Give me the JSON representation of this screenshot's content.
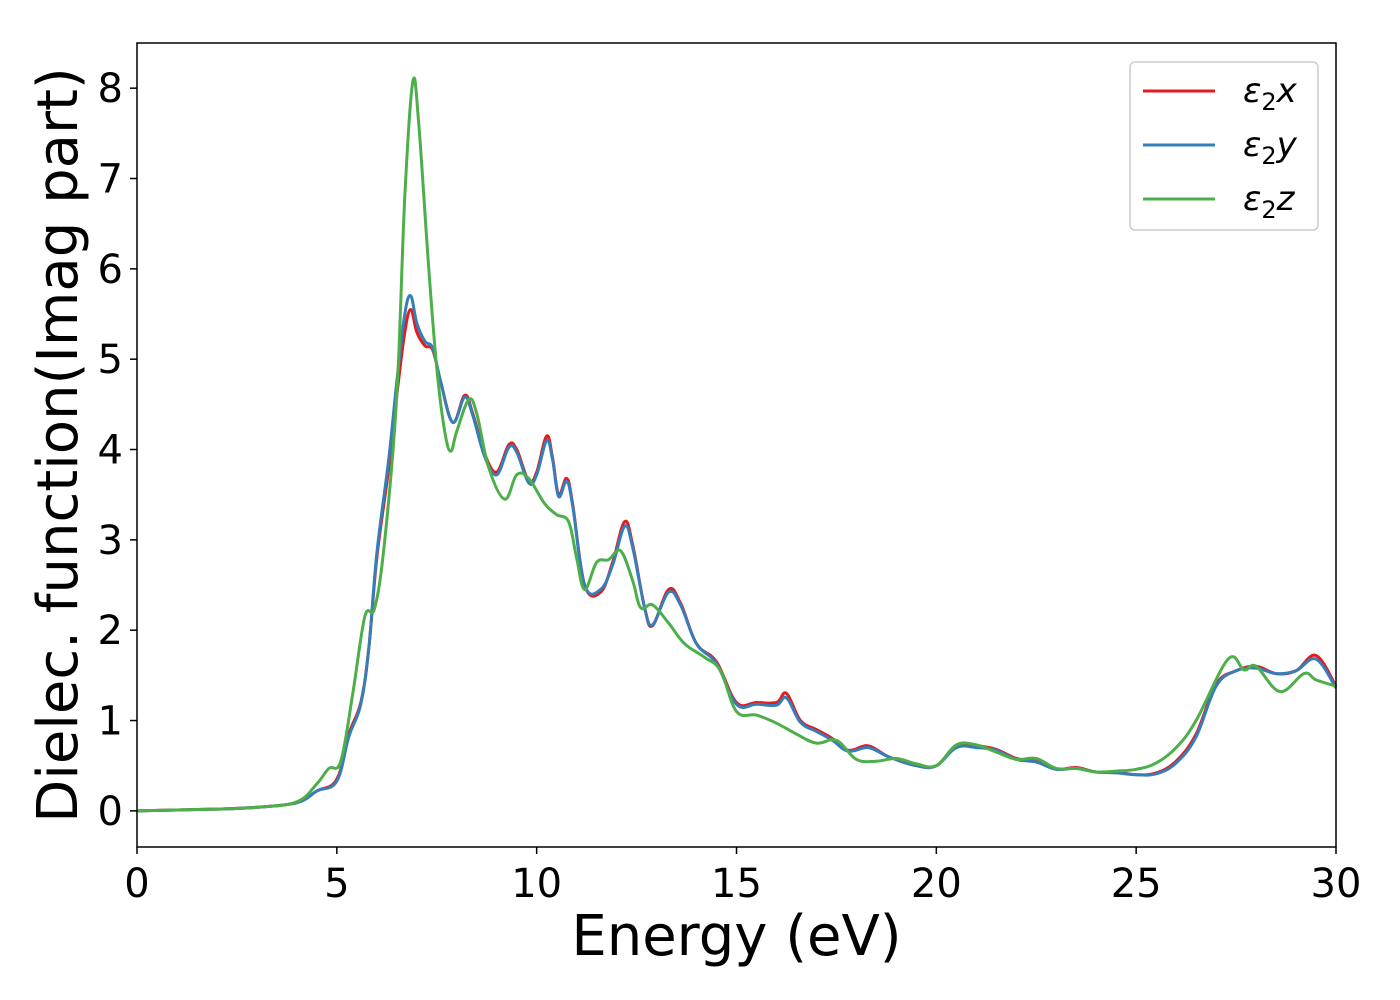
{
  "chart_data": {
    "type": "line",
    "xlabel": "Energy (eV)",
    "ylabel": "Dielec. function(Imag part)",
    "xlim": [
      0,
      30
    ],
    "ylim": [
      -0.4,
      8.5
    ],
    "xticks": [
      "0",
      "5",
      "10",
      "15",
      "20",
      "25",
      "30"
    ],
    "yticks": [
      "0",
      "1",
      "2",
      "3",
      "4",
      "5",
      "6",
      "7",
      "8"
    ],
    "grid": false,
    "legend_position": "top-right",
    "series": [
      {
        "name": "ε₂x",
        "legend_main": "ε",
        "legend_sub": "2",
        "legend_tail": "x",
        "color": "#e41a1c",
        "points": [
          [
            0,
            0.0
          ],
          [
            1,
            0.01
          ],
          [
            2,
            0.02
          ],
          [
            3,
            0.04
          ],
          [
            4,
            0.09
          ],
          [
            4.5,
            0.22
          ],
          [
            5,
            0.35
          ],
          [
            5.3,
            0.85
          ],
          [
            5.6,
            1.2
          ],
          [
            5.8,
            1.8
          ],
          [
            6,
            2.8
          ],
          [
            6.3,
            3.8
          ],
          [
            6.5,
            4.6
          ],
          [
            6.7,
            5.3
          ],
          [
            6.85,
            5.55
          ],
          [
            7,
            5.3
          ],
          [
            7.2,
            5.15
          ],
          [
            7.4,
            5.1
          ],
          [
            7.6,
            4.75
          ],
          [
            7.9,
            4.3
          ],
          [
            8.2,
            4.6
          ],
          [
            8.4,
            4.4
          ],
          [
            8.7,
            3.95
          ],
          [
            9,
            3.75
          ],
          [
            9.3,
            4.05
          ],
          [
            9.5,
            4.0
          ],
          [
            9.8,
            3.65
          ],
          [
            10.0,
            3.75
          ],
          [
            10.25,
            4.15
          ],
          [
            10.4,
            3.9
          ],
          [
            10.55,
            3.5
          ],
          [
            10.75,
            3.68
          ],
          [
            10.9,
            3.4
          ],
          [
            11.2,
            2.5
          ],
          [
            11.6,
            2.42
          ],
          [
            11.9,
            2.75
          ],
          [
            12.2,
            3.2
          ],
          [
            12.4,
            2.95
          ],
          [
            12.7,
            2.25
          ],
          [
            12.9,
            2.05
          ],
          [
            13.3,
            2.45
          ],
          [
            13.6,
            2.3
          ],
          [
            14,
            1.85
          ],
          [
            14.5,
            1.65
          ],
          [
            15,
            1.2
          ],
          [
            15.5,
            1.2
          ],
          [
            16,
            1.2
          ],
          [
            16.25,
            1.3
          ],
          [
            16.6,
            1.0
          ],
          [
            17,
            0.9
          ],
          [
            17.4,
            0.8
          ],
          [
            17.8,
            0.67
          ],
          [
            18.3,
            0.72
          ],
          [
            18.8,
            0.6
          ],
          [
            19.5,
            0.5
          ],
          [
            20,
            0.5
          ],
          [
            20.5,
            0.72
          ],
          [
            21,
            0.72
          ],
          [
            21.5,
            0.68
          ],
          [
            22,
            0.58
          ],
          [
            22.5,
            0.55
          ],
          [
            23,
            0.46
          ],
          [
            23.5,
            0.48
          ],
          [
            24,
            0.43
          ],
          [
            24.5,
            0.43
          ],
          [
            25,
            0.4
          ],
          [
            25.5,
            0.42
          ],
          [
            26,
            0.55
          ],
          [
            26.5,
            0.85
          ],
          [
            27,
            1.4
          ],
          [
            27.5,
            1.55
          ],
          [
            28,
            1.6
          ],
          [
            28.5,
            1.52
          ],
          [
            29,
            1.55
          ],
          [
            29.5,
            1.72
          ],
          [
            30,
            1.38
          ]
        ]
      },
      {
        "name": "ε₂y",
        "legend_main": "ε",
        "legend_sub": "2",
        "legend_tail": "y",
        "color": "#377eb8",
        "points": [
          [
            0,
            0.0
          ],
          [
            1,
            0.01
          ],
          [
            2,
            0.02
          ],
          [
            3,
            0.04
          ],
          [
            4,
            0.09
          ],
          [
            4.5,
            0.22
          ],
          [
            5,
            0.33
          ],
          [
            5.3,
            0.82
          ],
          [
            5.6,
            1.18
          ],
          [
            5.8,
            1.8
          ],
          [
            6,
            2.85
          ],
          [
            6.3,
            3.9
          ],
          [
            6.5,
            4.75
          ],
          [
            6.7,
            5.5
          ],
          [
            6.85,
            5.7
          ],
          [
            7,
            5.4
          ],
          [
            7.2,
            5.2
          ],
          [
            7.4,
            5.12
          ],
          [
            7.6,
            4.75
          ],
          [
            7.9,
            4.3
          ],
          [
            8.2,
            4.58
          ],
          [
            8.4,
            4.38
          ],
          [
            8.7,
            3.92
          ],
          [
            9,
            3.72
          ],
          [
            9.3,
            4.02
          ],
          [
            9.5,
            3.97
          ],
          [
            9.8,
            3.63
          ],
          [
            10.0,
            3.72
          ],
          [
            10.25,
            4.1
          ],
          [
            10.4,
            3.88
          ],
          [
            10.55,
            3.48
          ],
          [
            10.75,
            3.65
          ],
          [
            10.9,
            3.38
          ],
          [
            11.2,
            2.5
          ],
          [
            11.6,
            2.45
          ],
          [
            11.9,
            2.72
          ],
          [
            12.2,
            3.15
          ],
          [
            12.4,
            2.92
          ],
          [
            12.7,
            2.25
          ],
          [
            12.9,
            2.06
          ],
          [
            13.3,
            2.42
          ],
          [
            13.6,
            2.28
          ],
          [
            14,
            1.85
          ],
          [
            14.5,
            1.63
          ],
          [
            15,
            1.18
          ],
          [
            15.5,
            1.18
          ],
          [
            16,
            1.17
          ],
          [
            16.25,
            1.25
          ],
          [
            16.6,
            0.98
          ],
          [
            17,
            0.88
          ],
          [
            17.4,
            0.78
          ],
          [
            17.8,
            0.66
          ],
          [
            18.3,
            0.7
          ],
          [
            18.8,
            0.6
          ],
          [
            19.5,
            0.5
          ],
          [
            20,
            0.5
          ],
          [
            20.5,
            0.7
          ],
          [
            21,
            0.7
          ],
          [
            21.5,
            0.67
          ],
          [
            22,
            0.57
          ],
          [
            22.5,
            0.54
          ],
          [
            23,
            0.46
          ],
          [
            23.5,
            0.47
          ],
          [
            24,
            0.43
          ],
          [
            24.5,
            0.42
          ],
          [
            25,
            0.4
          ],
          [
            25.5,
            0.41
          ],
          [
            26,
            0.53
          ],
          [
            26.5,
            0.82
          ],
          [
            27,
            1.38
          ],
          [
            27.5,
            1.55
          ],
          [
            28,
            1.58
          ],
          [
            28.5,
            1.52
          ],
          [
            29,
            1.55
          ],
          [
            29.5,
            1.68
          ],
          [
            30,
            1.36
          ]
        ]
      },
      {
        "name": "ε₂z",
        "legend_main": "ε",
        "legend_sub": "2",
        "legend_tail": "z",
        "color": "#4daf4a",
        "points": [
          [
            0,
            0.0
          ],
          [
            1,
            0.01
          ],
          [
            2,
            0.02
          ],
          [
            3,
            0.04
          ],
          [
            4,
            0.1
          ],
          [
            4.5,
            0.3
          ],
          [
            4.8,
            0.47
          ],
          [
            5.1,
            0.55
          ],
          [
            5.4,
            1.3
          ],
          [
            5.7,
            2.15
          ],
          [
            5.95,
            2.25
          ],
          [
            6.2,
            3.0
          ],
          [
            6.5,
            4.6
          ],
          [
            6.7,
            6.8
          ],
          [
            6.9,
            8.07
          ],
          [
            7.05,
            7.6
          ],
          [
            7.3,
            6.0
          ],
          [
            7.5,
            4.9
          ],
          [
            7.7,
            4.2
          ],
          [
            7.85,
            3.98
          ],
          [
            8.0,
            4.2
          ],
          [
            8.3,
            4.55
          ],
          [
            8.5,
            4.4
          ],
          [
            8.8,
            3.8
          ],
          [
            9.2,
            3.45
          ],
          [
            9.5,
            3.72
          ],
          [
            9.8,
            3.68
          ],
          [
            10.2,
            3.4
          ],
          [
            10.5,
            3.28
          ],
          [
            10.8,
            3.2
          ],
          [
            11.0,
            2.8
          ],
          [
            11.2,
            2.45
          ],
          [
            11.5,
            2.75
          ],
          [
            11.8,
            2.78
          ],
          [
            12.1,
            2.88
          ],
          [
            12.4,
            2.55
          ],
          [
            12.6,
            2.25
          ],
          [
            12.9,
            2.28
          ],
          [
            13.3,
            2.08
          ],
          [
            13.7,
            1.85
          ],
          [
            14.2,
            1.7
          ],
          [
            14.6,
            1.55
          ],
          [
            15,
            1.1
          ],
          [
            15.5,
            1.06
          ],
          [
            16,
            0.97
          ],
          [
            16.5,
            0.85
          ],
          [
            17,
            0.75
          ],
          [
            17.5,
            0.78
          ],
          [
            18,
            0.57
          ],
          [
            18.5,
            0.55
          ],
          [
            19,
            0.58
          ],
          [
            19.5,
            0.52
          ],
          [
            20,
            0.5
          ],
          [
            20.5,
            0.73
          ],
          [
            21,
            0.73
          ],
          [
            21.5,
            0.65
          ],
          [
            22,
            0.57
          ],
          [
            22.5,
            0.58
          ],
          [
            23,
            0.47
          ],
          [
            23.5,
            0.47
          ],
          [
            24,
            0.43
          ],
          [
            24.5,
            0.44
          ],
          [
            25,
            0.46
          ],
          [
            25.5,
            0.53
          ],
          [
            26,
            0.7
          ],
          [
            26.5,
            1.0
          ],
          [
            27.3,
            1.68
          ],
          [
            27.7,
            1.56
          ],
          [
            28,
            1.6
          ],
          [
            28.6,
            1.32
          ],
          [
            29.2,
            1.52
          ],
          [
            29.5,
            1.45
          ],
          [
            30,
            1.38
          ]
        ]
      }
    ]
  }
}
